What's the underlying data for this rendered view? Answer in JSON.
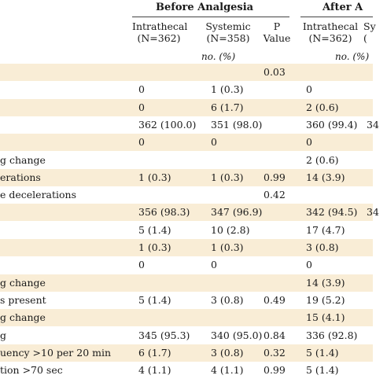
{
  "header": {
    "group_before": "Before Analgesia",
    "group_after": "After A",
    "cols": [
      {
        "line1": "Intrathecal",
        "line2": "(N=362)"
      },
      {
        "line1": "Systemic",
        "line2": "(N=358)"
      },
      {
        "line1": "P",
        "line2": "Value"
      },
      {
        "line1": "Intrathecal",
        "line2": "(N=362)"
      },
      {
        "line1": "Sy",
        "line2": "("
      }
    ],
    "units_before": "no. (%)",
    "units_after": "no. (%)"
  },
  "rows": [
    {
      "label": "",
      "it": "",
      "sys": "",
      "p": "0.03",
      "it2": "",
      "sys2": "",
      "shaded": true
    },
    {
      "label": "",
      "it": "0",
      "sys": "1 (0.3)",
      "p": "",
      "it2": "0",
      "sys2": "",
      "shaded": false
    },
    {
      "label": "",
      "it": "0",
      "sys": "6 (1.7)",
      "p": "",
      "it2": "2 (0.6)",
      "sys2": "",
      "shaded": true
    },
    {
      "label": "",
      "it": "362 (100.0)",
      "sys": "351 (98.0)",
      "p": "",
      "it2": "360 (99.4)",
      "sys2": "34",
      "shaded": false
    },
    {
      "label": "",
      "it": "0",
      "sys": "0",
      "p": "",
      "it2": "0",
      "sys2": "",
      "shaded": true
    },
    {
      "label": "g change",
      "it": "",
      "sys": "",
      "p": "",
      "it2": "2 (0.6)",
      "sys2": "",
      "shaded": false
    },
    {
      "label": "erations",
      "it": "1 (0.3)",
      "sys": "1 (0.3)",
      "p": "0.99",
      "it2": "14 (3.9)",
      "sys2": "",
      "shaded": true
    },
    {
      "label": "e decelerations",
      "it": "",
      "sys": "",
      "p": "0.42",
      "it2": "",
      "sys2": "",
      "shaded": false
    },
    {
      "label": "",
      "it": "356 (98.3)",
      "sys": "347 (96.9)",
      "p": "",
      "it2": "342 (94.5)",
      "sys2": "34",
      "shaded": true
    },
    {
      "label": "",
      "it": "5 (1.4)",
      "sys": "10 (2.8)",
      "p": "",
      "it2": "17 (4.7)",
      "sys2": "",
      "shaded": false
    },
    {
      "label": "",
      "it": "1 (0.3)",
      "sys": "1 (0.3)",
      "p": "",
      "it2": "3 (0.8)",
      "sys2": "",
      "shaded": true
    },
    {
      "label": "",
      "it": "0",
      "sys": "0",
      "p": "",
      "it2": "0",
      "sys2": "",
      "shaded": false
    },
    {
      "label": "g change",
      "it": "",
      "sys": "",
      "p": "",
      "it2": "14 (3.9)",
      "sys2": "",
      "shaded": true
    },
    {
      "label": "s present",
      "it": "5 (1.4)",
      "sys": "3 (0.8)",
      "p": "0.49",
      "it2": "19 (5.2)",
      "sys2": "",
      "shaded": false
    },
    {
      "label": "g change",
      "it": "",
      "sys": "",
      "p": "",
      "it2": "15 (4.1)",
      "sys2": "",
      "shaded": true
    },
    {
      "label": "g",
      "it": "345 (95.3)",
      "sys": "340 (95.0)",
      "p": "0.84",
      "it2": "336 (92.8)",
      "sys2": "",
      "shaded": false
    },
    {
      "label": "uency >10 per 20 min",
      "it": "6 (1.7)",
      "sys": "3 (0.8)",
      "p": "0.32",
      "it2": "5 (1.4)",
      "sys2": "",
      "shaded": true
    },
    {
      "label": "tion >70 sec",
      "it": "4 (1.1)",
      "sys": "4 (1.1)",
      "p": "0.99",
      "it2": "5 (1.4)",
      "sys2": "",
      "shaded": false
    }
  ]
}
